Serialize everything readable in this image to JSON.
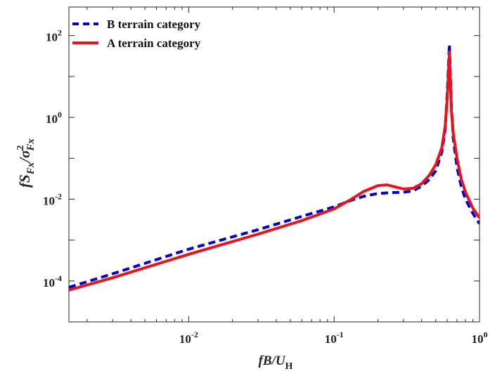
{
  "chart_data": {
    "type": "line",
    "scale": {
      "x": "log",
      "y": "log"
    },
    "xlim": [
      0.0015,
      1.0
    ],
    "ylim": [
      1e-05,
      500
    ],
    "grid": false,
    "legend_placement": "top-left",
    "xlabel": {
      "main": "fB/U",
      "sub": "H"
    },
    "ylabel": {
      "main": "fS",
      "sub1": "Fx",
      "slash": "/σ",
      "sup": "2",
      "sub2": "Fx"
    },
    "x_ticks": [
      {
        "value": 0.01,
        "base": "10",
        "exp": "-2"
      },
      {
        "value": 0.1,
        "base": "10",
        "exp": "-1"
      },
      {
        "value": 1.0,
        "base": "10",
        "exp": "0"
      }
    ],
    "y_ticks": [
      {
        "value": 0.0001,
        "base": "10",
        "exp": "-4"
      },
      {
        "value": 0.01,
        "base": "10",
        "exp": "-2"
      },
      {
        "value": 1.0,
        "base": "10",
        "exp": "0"
      },
      {
        "value": 100.0,
        "base": "10",
        "exp": "2"
      }
    ],
    "series": [
      {
        "name": "B terrain category",
        "color": "#0000cc",
        "style": "dashed",
        "x": [
          0.0015,
          0.003,
          0.01,
          0.03,
          0.06,
          0.1,
          0.13,
          0.16,
          0.2,
          0.25,
          0.3,
          0.35,
          0.4,
          0.45,
          0.5,
          0.55,
          0.58,
          0.6,
          0.61,
          0.62,
          0.63,
          0.64,
          0.66,
          0.7,
          0.75,
          0.8,
          0.9,
          1.0
        ],
        "y": [
          7e-05,
          0.00015,
          0.0006,
          0.0018,
          0.0038,
          0.0065,
          0.0093,
          0.0118,
          0.0138,
          0.0145,
          0.0148,
          0.016,
          0.021,
          0.03,
          0.05,
          0.14,
          0.5,
          4.0,
          15.0,
          60.0,
          12.0,
          2.0,
          0.3,
          0.06,
          0.02,
          0.01,
          0.0045,
          0.0025
        ]
      },
      {
        "name": "A terrain category",
        "color": "#e8141c",
        "style": "solid",
        "x": [
          0.0015,
          0.003,
          0.01,
          0.03,
          0.06,
          0.1,
          0.13,
          0.16,
          0.2,
          0.23,
          0.27,
          0.3,
          0.35,
          0.4,
          0.45,
          0.5,
          0.55,
          0.58,
          0.6,
          0.61,
          0.62,
          0.63,
          0.64,
          0.66,
          0.7,
          0.75,
          0.8,
          0.9,
          1.0
        ],
        "y": [
          6e-05,
          0.00012,
          0.00045,
          0.0014,
          0.003,
          0.0058,
          0.0098,
          0.0155,
          0.0215,
          0.0225,
          0.0195,
          0.0178,
          0.0185,
          0.024,
          0.038,
          0.07,
          0.18,
          0.6,
          3.0,
          10.0,
          40.0,
          8.0,
          1.5,
          0.4,
          0.1,
          0.03,
          0.015,
          0.006,
          0.0035
        ]
      }
    ]
  }
}
